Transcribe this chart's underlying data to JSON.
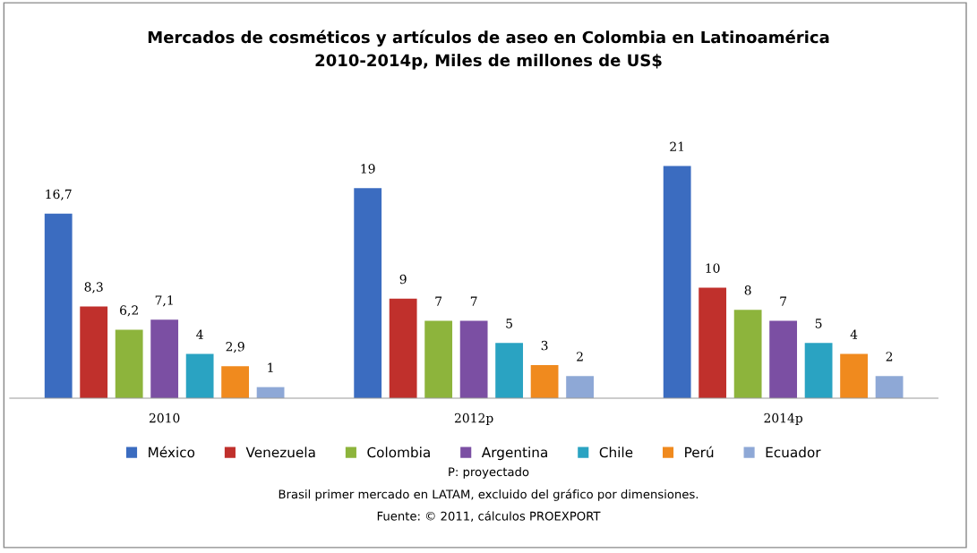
{
  "chart_data": {
    "type": "bar",
    "title": "Mercados de cosméticos y artículos de aseo en Colombia en Latinoamérica\n2010-2014p, Miles de millones de US$",
    "categories": [
      "2010",
      "2012p",
      "2014p"
    ],
    "series": [
      {
        "name": "México",
        "color": "#3b6cc0",
        "values": [
          16.7,
          19,
          21
        ],
        "value_labels": [
          "16,7",
          "19",
          "21"
        ]
      },
      {
        "name": "Venezuela",
        "color": "#c0302c",
        "values": [
          8.3,
          9,
          10
        ],
        "value_labels": [
          "8,3",
          "9",
          "10"
        ]
      },
      {
        "name": "Colombia",
        "color": "#8db43c",
        "values": [
          6.2,
          7,
          8
        ],
        "value_labels": [
          "6,2",
          "7",
          "8"
        ]
      },
      {
        "name": "Argentina",
        "color": "#7b4fa3",
        "values": [
          7.1,
          7,
          7
        ],
        "value_labels": [
          "7,1",
          "7",
          "7"
        ]
      },
      {
        "name": "Chile",
        "color": "#2aa3c2",
        "values": [
          4,
          5,
          5
        ],
        "value_labels": [
          "4",
          "5",
          "5"
        ]
      },
      {
        "name": "Perú",
        "color": "#f08a1e",
        "values": [
          2.9,
          3,
          4
        ],
        "value_labels": [
          "2,9",
          "3",
          "4"
        ]
      },
      {
        "name": "Ecuador",
        "color": "#8ea8d6",
        "values": [
          1,
          2,
          2
        ],
        "value_labels": [
          "1",
          "2",
          "2"
        ]
      }
    ],
    "legend": "bottom",
    "grid": false,
    "annotations": [
      "P: proyectado",
      "Brasil primer mercado en LATAM, excluido del gráfico por dimensiones.",
      "Fuente: © 2011, cálculos PROEXPORT"
    ]
  }
}
